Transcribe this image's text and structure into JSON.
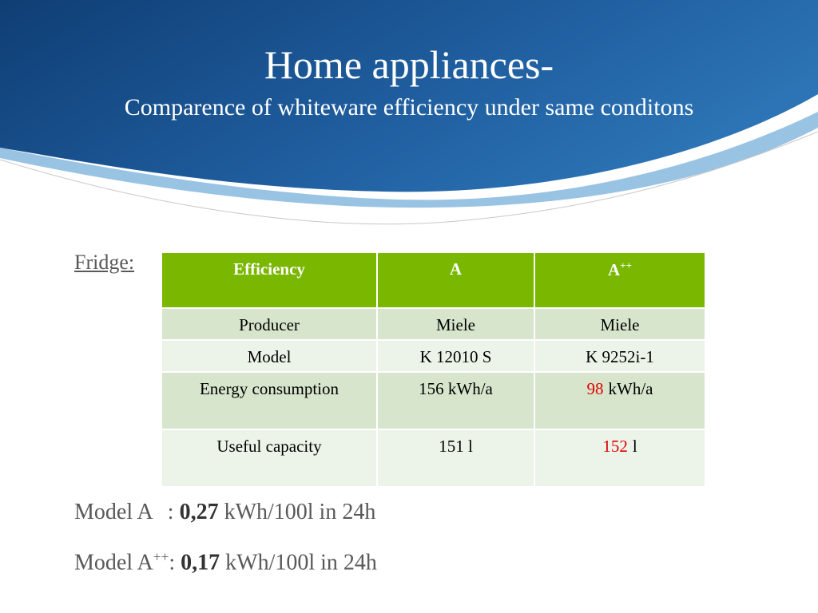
{
  "header": {
    "title": "Home appliances-",
    "subtitle": "Comparence of whiteware efficiency under same conditons"
  },
  "label": "Fridge:",
  "table": {
    "header": [
      "Efficiency",
      "A",
      {
        "text": "A",
        "sup": "++"
      }
    ],
    "rows": [
      [
        "Producer",
        "Miele",
        "Miele"
      ],
      [
        "Model",
        "K 12010 S",
        "K 9252i-1"
      ],
      [
        "Energy consumption",
        "156 kWh/a",
        {
          "highlight": "98",
          "rest": "kWh/a"
        }
      ],
      [
        "Useful capacity",
        "151 l",
        {
          "highlight": "152",
          "rest": "l"
        }
      ]
    ]
  },
  "notes": [
    {
      "model": "Model A",
      "sep": ":",
      "value": "0,27",
      "unit": "kWh/100l in 24h"
    },
    {
      "model": "Model A",
      "sup": "++",
      "sep": ":",
      "value": "0,17",
      "unit": "kWh/100l in 24h"
    }
  ]
}
